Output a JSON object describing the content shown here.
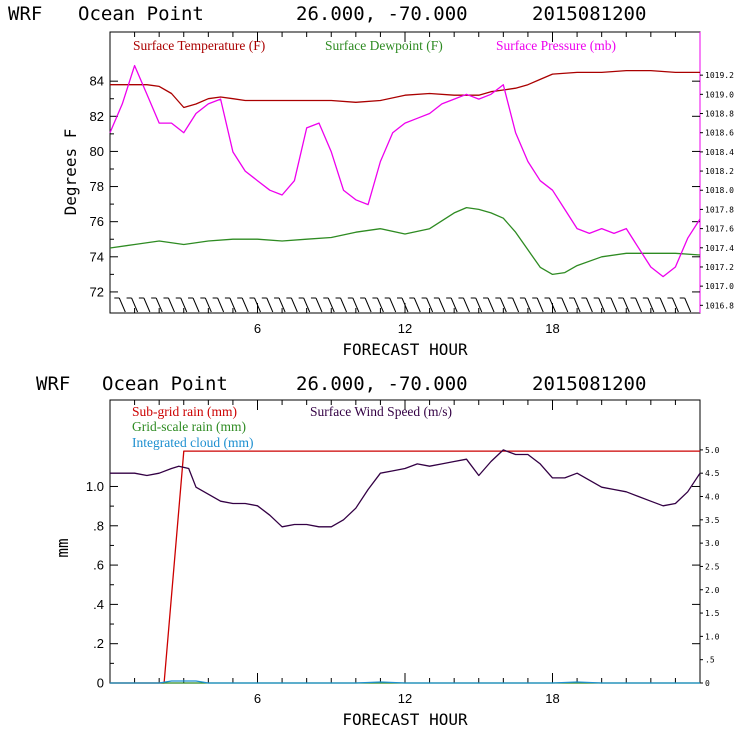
{
  "chart_data": [
    {
      "type": "line",
      "header": {
        "model": "WRF",
        "location": "Ocean Point",
        "coords": "26.000, -70.000",
        "date": "2015081200"
      },
      "xlabel": "FORECAST HOUR",
      "ylabel": "Degrees F",
      "x_ticks": [
        "6",
        "12",
        "18"
      ],
      "xlim": [
        0,
        24
      ],
      "ylim": [
        70.8,
        86.8
      ],
      "y_ticks": [
        "72",
        "74",
        "76",
        "78",
        "80",
        "82",
        "84"
      ],
      "y2lim": [
        1016.72,
        1019.65
      ],
      "y2_ticks": [
        "1016.8",
        "1017.0",
        "1017.2",
        "1017.4",
        "1017.6",
        "1017.8",
        "1018.0",
        "1018.2",
        "1018.4",
        "1018.6",
        "1018.8",
        "1019.0",
        "1019.2"
      ],
      "wind_barbs": true,
      "series": [
        {
          "name": "Surface Temperature (F)",
          "color": "#aa0000",
          "axis": "left",
          "x": [
            0,
            1,
            1.5,
            2,
            2.5,
            3,
            3.5,
            4,
            4.5,
            5,
            5.5,
            6,
            7,
            8,
            9,
            10,
            11,
            12,
            13,
            14,
            15,
            15.5,
            16,
            16.5,
            17,
            17.5,
            18,
            19,
            20,
            21,
            22,
            23,
            24
          ],
          "y": [
            83.8,
            83.8,
            83.8,
            83.7,
            83.3,
            82.5,
            82.7,
            83.0,
            83.1,
            83.0,
            82.9,
            82.9,
            82.9,
            82.9,
            82.9,
            82.8,
            82.9,
            83.2,
            83.3,
            83.2,
            83.2,
            83.4,
            83.5,
            83.6,
            83.8,
            84.1,
            84.4,
            84.5,
            84.5,
            84.6,
            84.6,
            84.5,
            84.5
          ]
        },
        {
          "name": "Surface Dewpoint (F)",
          "color": "#2e8b22",
          "axis": "left",
          "x": [
            0,
            1,
            2,
            3,
            4,
            5,
            6,
            7,
            8,
            9,
            10,
            11,
            12,
            13,
            14,
            14.5,
            15,
            15.5,
            16,
            16.5,
            17,
            17.5,
            18,
            18.5,
            19,
            20,
            21,
            22,
            23,
            24
          ],
          "y": [
            74.5,
            74.7,
            74.9,
            74.7,
            74.9,
            75.0,
            75.0,
            74.9,
            75.0,
            75.1,
            75.4,
            75.6,
            75.3,
            75.6,
            76.5,
            76.8,
            76.7,
            76.5,
            76.2,
            75.4,
            74.4,
            73.4,
            73.0,
            73.1,
            73.5,
            74.0,
            74.2,
            74.2,
            74.2,
            74.1
          ]
        },
        {
          "name": "Surface Pressure (mb)",
          "color": "#ee00ee",
          "axis": "right",
          "x": [
            0,
            0.5,
            1,
            1.5,
            2,
            2.5,
            3,
            3.5,
            4,
            4.5,
            5,
            5.5,
            6,
            6.5,
            7,
            7.5,
            8,
            8.5,
            9,
            9.5,
            10,
            10.5,
            11,
            11.5,
            12,
            12.5,
            13,
            13.5,
            14,
            14.5,
            15,
            15.5,
            16,
            16.5,
            17,
            17.5,
            18,
            18.5,
            19,
            19.5,
            20,
            20.5,
            21,
            21.5,
            22,
            22.5,
            23,
            23.5,
            24
          ],
          "y": [
            1018.6,
            1018.9,
            1019.3,
            1019.0,
            1018.7,
            1018.7,
            1018.6,
            1018.8,
            1018.9,
            1018.95,
            1018.4,
            1018.2,
            1018.1,
            1018.0,
            1017.95,
            1018.1,
            1018.65,
            1018.7,
            1018.4,
            1018.0,
            1017.9,
            1017.85,
            1018.3,
            1018.6,
            1018.7,
            1018.75,
            1018.8,
            1018.9,
            1018.95,
            1019.0,
            1018.95,
            1019.0,
            1019.1,
            1018.6,
            1018.3,
            1018.1,
            1018.0,
            1017.8,
            1017.6,
            1017.55,
            1017.6,
            1017.55,
            1017.6,
            1017.4,
            1017.2,
            1017.1,
            1017.2,
            1017.5,
            1017.7
          ]
        }
      ]
    },
    {
      "type": "line",
      "header": {
        "model": "WRF",
        "location": "Ocean Point",
        "coords": "26.000, -70.000",
        "date": "2015081200"
      },
      "xlabel": "FORECAST HOUR",
      "ylabel": "mm",
      "x_ticks": [
        "6",
        "12",
        "18"
      ],
      "xlim": [
        0,
        24
      ],
      "ylim": [
        0,
        1.44
      ],
      "y_ticks": [
        "0",
        ".2",
        ".4",
        ".6",
        ".8",
        "1.0"
      ],
      "y2lim": [
        0,
        6.07
      ],
      "y2_ticks": [
        "0",
        ".5",
        "1.0",
        "1.5",
        "2.0",
        "2.5",
        "3.0",
        "3.5",
        "4.0",
        "4.5",
        "5.0"
      ],
      "series": [
        {
          "name": "Sub-grid rain (mm)",
          "color": "#cc0000",
          "axis": "left",
          "x": [
            0,
            2,
            2.2,
            3,
            24
          ],
          "y": [
            0,
            0,
            0,
            1.18,
            1.18
          ]
        },
        {
          "name": "Grid-scale rain (mm)",
          "color": "#2e8b22",
          "axis": "left",
          "x": [
            0,
            24
          ],
          "y": [
            0,
            0
          ]
        },
        {
          "name": "Integrated cloud (mm)",
          "color": "#1c8fd0",
          "axis": "left",
          "x": [
            0,
            2,
            2.5,
            3,
            3.5,
            4,
            8,
            10,
            11,
            12,
            16,
            18,
            19,
            20,
            24
          ],
          "y": [
            0,
            0,
            0.01,
            0.01,
            0.01,
            0,
            0,
            0,
            0.005,
            0,
            0,
            0,
            0.005,
            0,
            0
          ]
        },
        {
          "name": "Surface Wind Speed (m/s)",
          "color": "#330044",
          "axis": "right",
          "x": [
            0,
            0.5,
            1,
            1.5,
            2,
            2.5,
            2.8,
            3.2,
            3.5,
            4,
            4.5,
            5,
            5.5,
            6,
            6.5,
            7,
            7.5,
            8,
            8.5,
            9,
            9.5,
            10,
            10.5,
            11,
            11.5,
            12,
            12.5,
            13,
            13.5,
            14,
            14.5,
            15,
            15.5,
            16,
            16.5,
            17,
            17.5,
            18,
            18.5,
            19,
            19.5,
            20,
            20.5,
            21,
            21.5,
            22,
            22.5,
            23,
            23.5,
            24
          ],
          "y": [
            4.5,
            4.5,
            4.5,
            4.45,
            4.5,
            4.6,
            4.65,
            4.6,
            4.2,
            4.05,
            3.9,
            3.85,
            3.85,
            3.8,
            3.6,
            3.35,
            3.4,
            3.4,
            3.35,
            3.35,
            3.5,
            3.75,
            4.15,
            4.5,
            4.55,
            4.6,
            4.7,
            4.65,
            4.7,
            4.75,
            4.8,
            4.45,
            4.75,
            5.0,
            4.9,
            4.9,
            4.7,
            4.4,
            4.4,
            4.5,
            4.35,
            4.2,
            4.15,
            4.1,
            4.0,
            3.9,
            3.8,
            3.85,
            4.1,
            4.5
          ]
        }
      ]
    }
  ]
}
